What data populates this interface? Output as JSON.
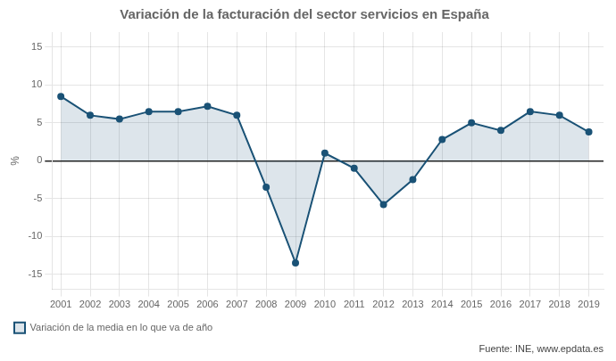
{
  "chart_data": {
    "type": "line",
    "title": "Variación de la facturación del sector servicios en España",
    "y_label": "%",
    "x": [
      2001,
      2002,
      2003,
      2004,
      2005,
      2006,
      2007,
      2008,
      2009,
      2010,
      2011,
      2012,
      2013,
      2014,
      2015,
      2016,
      2017,
      2018,
      2019
    ],
    "series": [
      {
        "name": "Variación de la media en lo que va de año",
        "color": "#1a5276",
        "values": [
          8.5,
          6.0,
          5.5,
          6.5,
          6.5,
          7.2,
          6.0,
          -3.5,
          -13.5,
          1.0,
          -1.0,
          -5.8,
          -2.5,
          2.8,
          5.0,
          4.0,
          6.5,
          6.0,
          3.8
        ]
      }
    ],
    "xlim": [
      2000.7,
      2019.5
    ],
    "xticks": [
      2001,
      2002,
      2003,
      2004,
      2005,
      2006,
      2007,
      2008,
      2009,
      2010,
      2011,
      2012,
      2013,
      2014,
      2015,
      2016,
      2017,
      2018,
      2019
    ],
    "ylim": [
      -17,
      17
    ],
    "yticks": [
      -15,
      -10,
      -5,
      0,
      5,
      10,
      15
    ],
    "grid": true,
    "legend": "bottom",
    "marker": "circle",
    "annotations": [
      "Fuente: INE, www.epdata.es"
    ]
  }
}
